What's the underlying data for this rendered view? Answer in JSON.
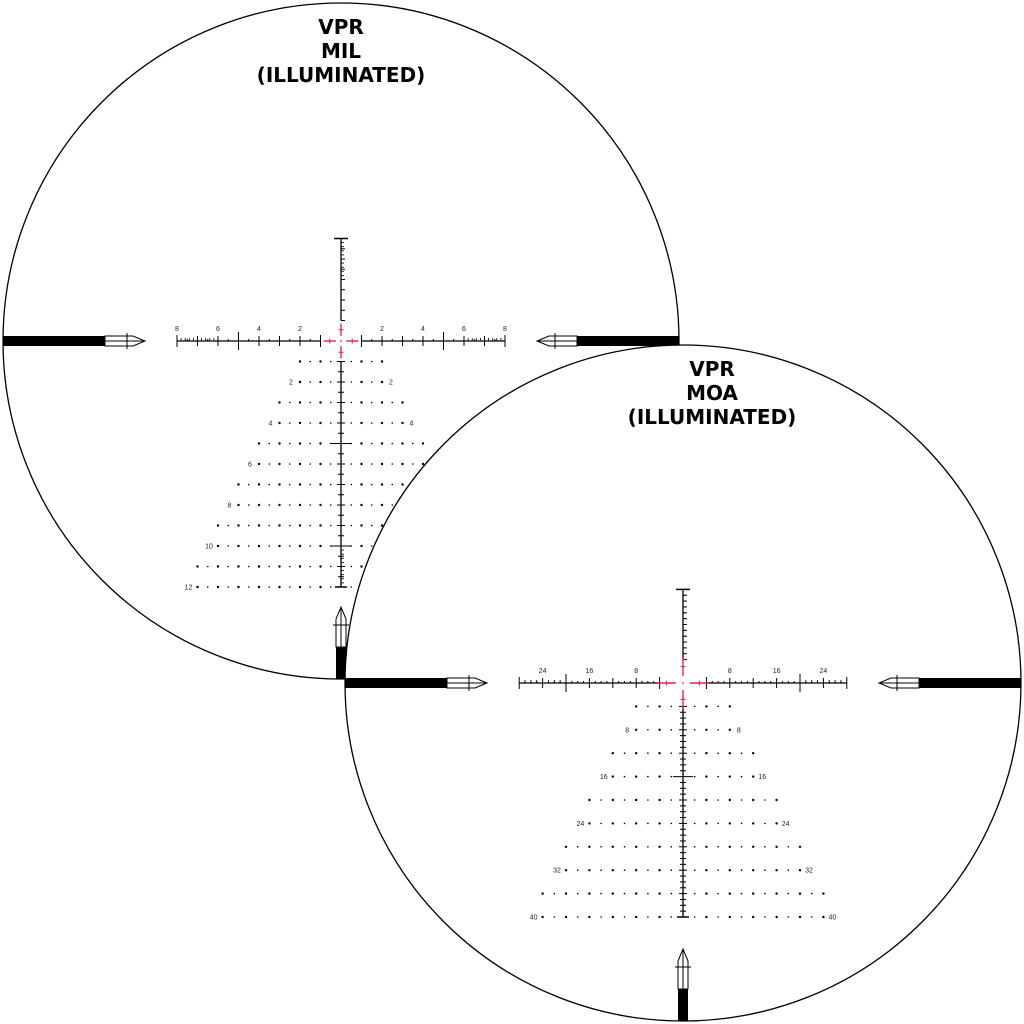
{
  "colors": {
    "reticle": "#000000",
    "illumination": "#e0245e",
    "background": "#ffffff"
  },
  "mil": {
    "title": [
      "VPR",
      "MIL",
      "(ILLUMINATED)"
    ],
    "windage_labels": [
      "2",
      "4",
      "6",
      "8"
    ],
    "elevation_labels": [
      "2",
      "4",
      "6",
      "8",
      "10",
      "12"
    ]
  },
  "moa": {
    "title": [
      "VPR",
      "MOA",
      "(ILLUMINATED)"
    ],
    "windage_labels": [
      "8",
      "16",
      "24"
    ],
    "elevation_labels": [
      "8",
      "16",
      "24",
      "32",
      "40"
    ]
  }
}
